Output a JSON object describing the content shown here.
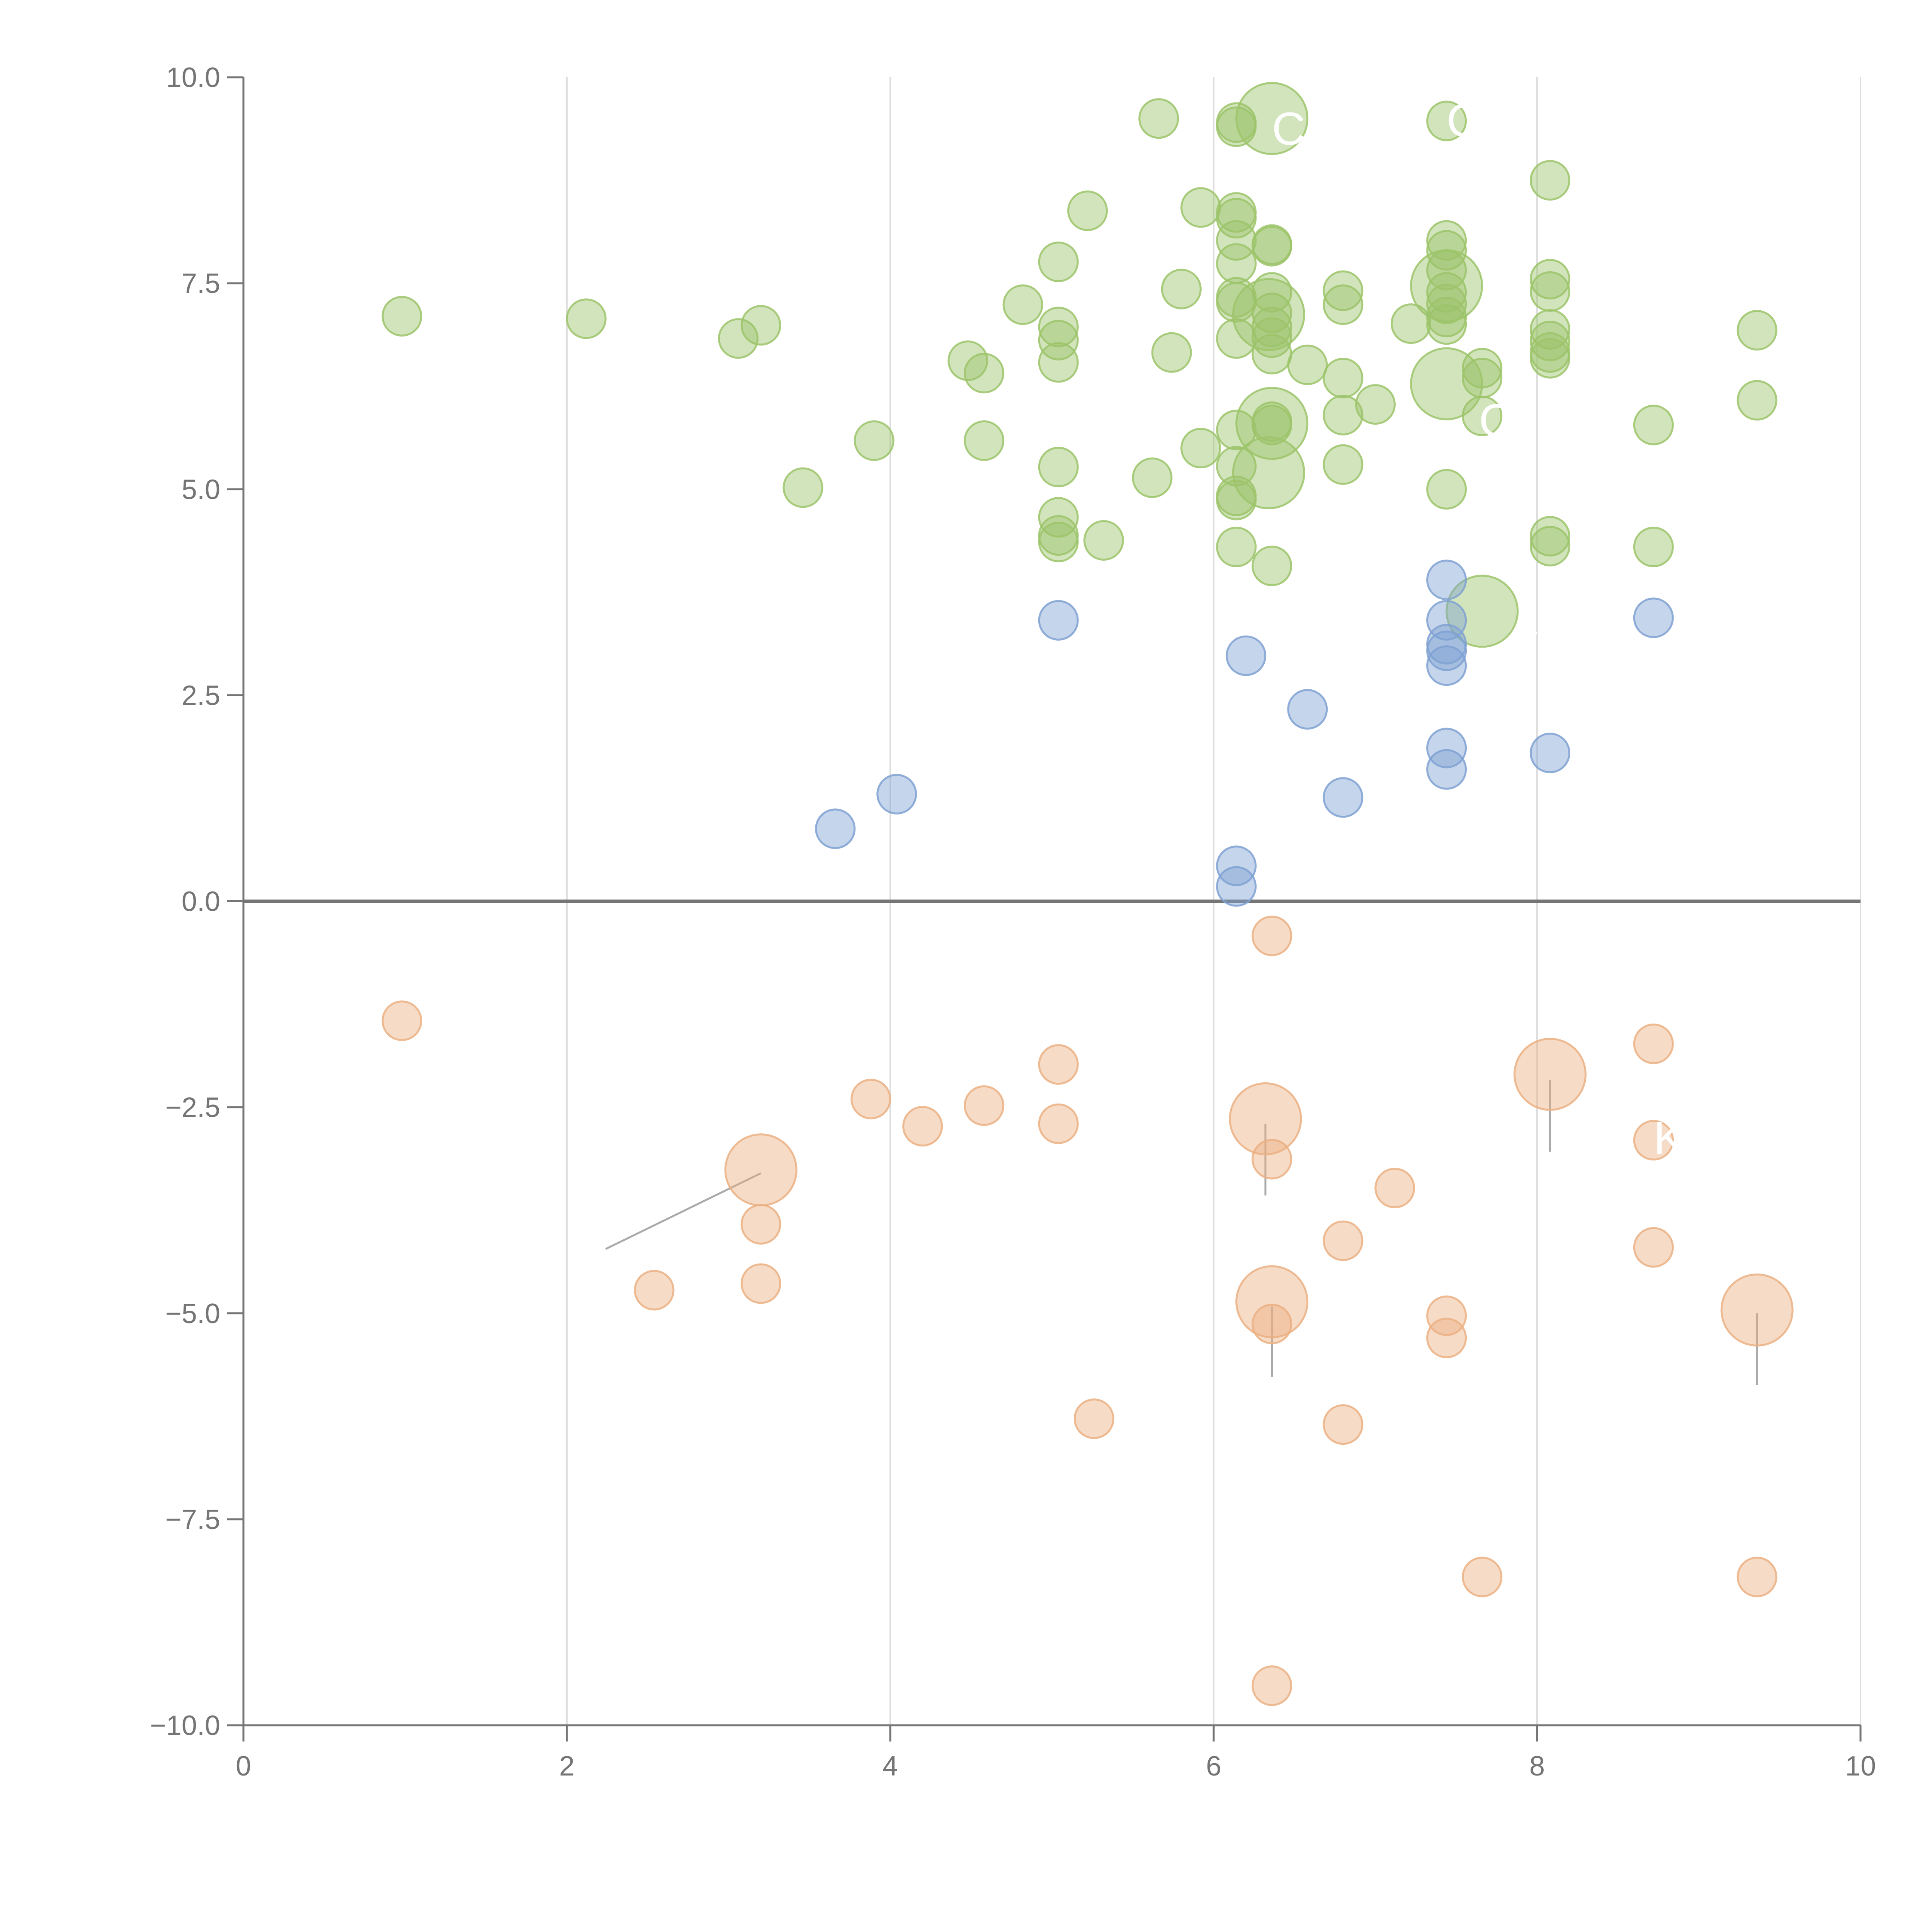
{
  "chart_data": {
    "type": "scatter",
    "title": "",
    "xlabel": "",
    "ylabel": "",
    "xlim": [
      0,
      10
    ],
    "ylim": [
      -10,
      10
    ],
    "x_ticks": [
      "0",
      "2",
      "4",
      "6",
      "8",
      "10"
    ],
    "y_ticks": [
      "−10.0",
      "−7.5",
      "−5.0",
      "−2.5",
      "0.0",
      "2.5",
      "5.0",
      "7.5",
      "10.0"
    ],
    "x_tick_values": [
      0,
      2,
      4,
      6,
      8,
      10
    ],
    "y_tick_values": [
      -10,
      -7.5,
      -5,
      -2.5,
      0,
      2.5,
      5,
      7.5,
      10
    ],
    "grid": "vertical",
    "zero_line": true,
    "legend": "none",
    "series": [
      {
        "name": "green",
        "color": "#9cc46a",
        "points": [
          [
            0.98,
            7.1
          ],
          [
            2.12,
            7.07
          ],
          [
            3.06,
            6.83
          ],
          [
            3.2,
            6.99
          ],
          [
            3.46,
            5.02
          ],
          [
            3.9,
            5.59
          ],
          [
            4.48,
            6.56
          ],
          [
            4.58,
            6.41
          ],
          [
            4.58,
            5.59
          ],
          [
            4.82,
            7.24
          ],
          [
            5.04,
            7.76
          ],
          [
            5.04,
            6.97
          ],
          [
            5.04,
            6.81
          ],
          [
            5.04,
            6.54
          ],
          [
            5.04,
            5.27
          ],
          [
            5.04,
            4.66
          ],
          [
            5.04,
            4.44
          ],
          [
            5.04,
            4.36
          ],
          [
            5.22,
            8.38
          ],
          [
            5.32,
            4.38
          ],
          [
            5.62,
            5.14
          ],
          [
            5.66,
            9.5
          ],
          [
            5.74,
            6.66
          ],
          [
            5.8,
            7.43
          ],
          [
            5.92,
            8.42
          ],
          [
            5.92,
            5.5
          ],
          [
            6.14,
            9.45
          ],
          [
            6.14,
            9.4
          ],
          [
            6.14,
            8.36
          ],
          [
            6.14,
            8.29
          ],
          [
            6.14,
            8.02
          ],
          [
            6.14,
            7.74
          ],
          [
            6.14,
            7.33
          ],
          [
            6.14,
            7.27
          ],
          [
            6.14,
            6.83
          ],
          [
            6.14,
            5.72
          ],
          [
            6.14,
            5.28
          ],
          [
            6.14,
            4.92
          ],
          [
            6.14,
            4.87
          ],
          [
            6.14,
            4.3
          ],
          [
            6.36,
            7.97
          ],
          [
            6.36,
            7.95
          ],
          [
            6.36,
            7.39
          ],
          [
            6.36,
            7.14
          ],
          [
            6.36,
            6.97
          ],
          [
            6.36,
            6.84
          ],
          [
            6.36,
            6.64
          ],
          [
            6.36,
            5.82
          ],
          [
            6.36,
            5.78
          ],
          [
            6.36,
            4.07
          ],
          [
            6.58,
            6.51
          ],
          [
            6.8,
            7.41
          ],
          [
            6.8,
            7.24
          ],
          [
            6.8,
            6.35
          ],
          [
            6.8,
            5.9
          ],
          [
            6.8,
            5.3
          ],
          [
            7.0,
            6.03
          ],
          [
            7.22,
            7.01
          ],
          [
            7.44,
            9.47
          ],
          [
            7.44,
            8.02
          ],
          [
            7.44,
            7.9
          ],
          [
            7.44,
            7.66
          ],
          [
            7.44,
            7.39
          ],
          [
            7.44,
            7.25
          ],
          [
            7.44,
            7.09
          ],
          [
            7.44,
            7.0
          ],
          [
            7.44,
            5.0
          ],
          [
            7.66,
            6.47
          ],
          [
            7.66,
            6.35
          ],
          [
            7.66,
            5.89
          ],
          [
            8.08,
            8.75
          ],
          [
            8.08,
            7.55
          ],
          [
            8.08,
            7.4
          ],
          [
            8.08,
            6.94
          ],
          [
            8.08,
            6.8
          ],
          [
            8.08,
            6.66
          ],
          [
            8.08,
            6.59
          ],
          [
            8.08,
            4.43
          ],
          [
            8.08,
            4.31
          ],
          [
            8.72,
            5.78
          ],
          [
            8.72,
            4.3
          ],
          [
            9.36,
            6.93
          ],
          [
            9.36,
            6.08
          ]
        ],
        "large_points": [
          [
            6.36,
            9.5
          ],
          [
            6.34,
            7.12
          ],
          [
            6.36,
            5.8
          ],
          [
            6.34,
            5.2
          ],
          [
            7.44,
            7.47
          ],
          [
            7.44,
            6.28
          ],
          [
            7.66,
            3.52
          ]
        ]
      },
      {
        "name": "blue",
        "color": "#7fa1d2",
        "points": [
          [
            3.66,
            0.88
          ],
          [
            4.04,
            1.3
          ],
          [
            5.04,
            3.41
          ],
          [
            6.14,
            0.43
          ],
          [
            6.14,
            0.18
          ],
          [
            6.2,
            2.98
          ],
          [
            6.58,
            2.33
          ],
          [
            6.8,
            1.26
          ],
          [
            7.44,
            3.9
          ],
          [
            7.44,
            3.41
          ],
          [
            7.44,
            3.12
          ],
          [
            7.44,
            3.04
          ],
          [
            7.44,
            2.86
          ],
          [
            7.44,
            1.86
          ],
          [
            7.44,
            1.6
          ],
          [
            8.08,
            1.8
          ],
          [
            8.72,
            3.44
          ]
        ],
        "large_points": []
      },
      {
        "name": "orange",
        "color": "#ebb082",
        "points": [
          [
            0.98,
            -1.45
          ],
          [
            2.54,
            -4.72
          ],
          [
            3.2,
            -3.92
          ],
          [
            3.2,
            -4.64
          ],
          [
            3.88,
            -2.4
          ],
          [
            4.2,
            -2.73
          ],
          [
            4.58,
            -2.48
          ],
          [
            5.04,
            -1.98
          ],
          [
            5.04,
            -2.7
          ],
          [
            5.26,
            -6.28
          ],
          [
            6.36,
            -0.42
          ],
          [
            6.36,
            -3.13
          ],
          [
            6.36,
            -5.13
          ],
          [
            6.36,
            -9.52
          ],
          [
            6.8,
            -4.12
          ],
          [
            6.8,
            -6.35
          ],
          [
            7.12,
            -3.48
          ],
          [
            7.44,
            -5.03
          ],
          [
            7.44,
            -5.3
          ],
          [
            7.66,
            -8.2
          ],
          [
            8.72,
            -1.73
          ],
          [
            8.72,
            -2.9
          ],
          [
            8.72,
            -4.2
          ],
          [
            9.36,
            -8.2
          ]
        ],
        "large_points": [
          [
            3.2,
            -3.26
          ],
          [
            6.32,
            -2.64
          ],
          [
            6.36,
            -4.86
          ],
          [
            8.08,
            -2.1
          ],
          [
            9.36,
            -4.96
          ]
        ]
      }
    ],
    "leader_lines": [
      {
        "from": [
          3.2,
          -3.3
        ],
        "to": [
          2.24,
          -4.22
        ],
        "color": "#aaaaaa"
      },
      {
        "from": [
          6.32,
          -2.7
        ],
        "to": [
          6.32,
          -3.57
        ],
        "color": "#aaaaaa"
      },
      {
        "from": [
          6.36,
          -4.92
        ],
        "to": [
          6.36,
          -5.77
        ],
        "color": "#aaaaaa"
      },
      {
        "from": [
          8.08,
          -2.17
        ],
        "to": [
          8.08,
          -3.04
        ],
        "color": "#aaaaaa"
      },
      {
        "from": [
          9.36,
          -5.0
        ],
        "to": [
          9.36,
          -5.87
        ],
        "color": "#aaaaaa"
      },
      {
        "from": [
          7.46,
          7.48
        ],
        "to": [
          8.14,
          7.55
        ],
        "color": "#ffffff"
      },
      {
        "from": [
          6.36,
          7.25
        ],
        "to": [
          6.4,
          7.75
        ],
        "color": "#ffffff"
      },
      {
        "from": [
          6.38,
          5.75
        ],
        "to": [
          6.44,
          5.25
        ],
        "color": "#ffffff"
      },
      {
        "from": [
          6.34,
          5.2
        ],
        "to": [
          6.16,
          4.2
        ],
        "color": "#ffffff"
      },
      {
        "from": [
          7.46,
          6.3
        ],
        "to": [
          7.64,
          6.2
        ],
        "color": "#ffffff"
      },
      {
        "from": [
          7.66,
          3.52
        ],
        "to": [
          8.0,
          3.25
        ],
        "color": "#ffffff"
      }
    ],
    "annotations": [
      {
        "text": "C",
        "x": 6.36,
        "y": 9.37,
        "color": "#ffffff"
      },
      {
        "text": "C",
        "x": 7.44,
        "y": 9.47,
        "color": "#ffffff"
      },
      {
        "text": "C",
        "x": 7.64,
        "y": 5.83,
        "color": "#ffffff"
      },
      {
        "text": "K",
        "x": 8.72,
        "y": -2.88,
        "color": "#ffffff"
      }
    ]
  }
}
